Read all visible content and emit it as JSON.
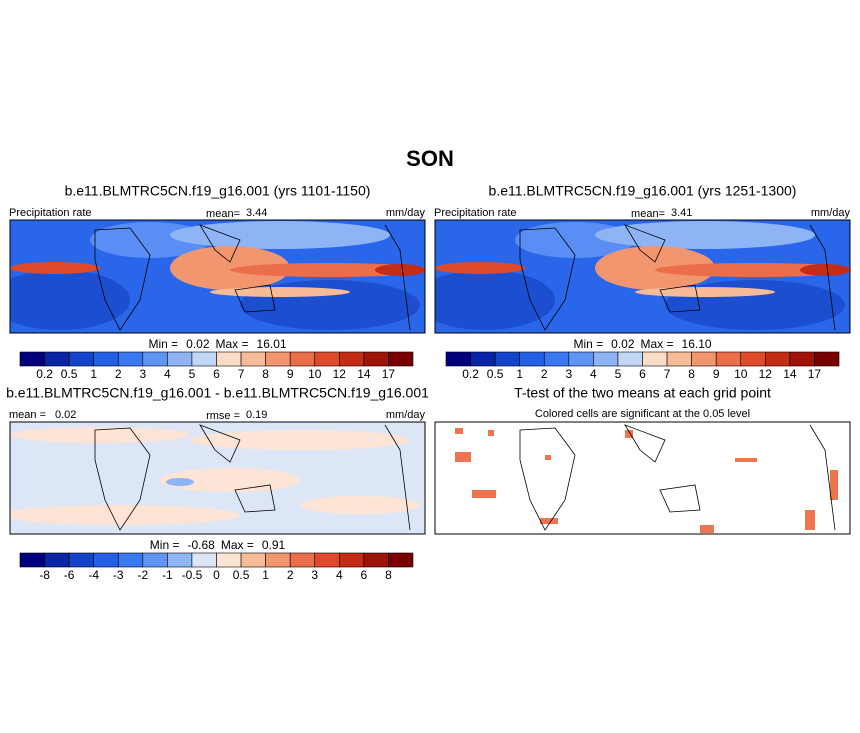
{
  "title": "SON",
  "panels": [
    {
      "title": "b.e11.BLMTRC5CN.f19_g16.001 (yrs 1101-1150)",
      "left_label": "Precipitation rate",
      "mean_label": "mean=",
      "mean": "3.44",
      "units": "mm/day",
      "min_label": "Min =",
      "min": "0.02",
      "max_label": "Max =",
      "max": "16.01"
    },
    {
      "title": "b.e11.BLMTRC5CN.f19_g16.001 (yrs 1251-1300)",
      "left_label": "Precipitation rate",
      "mean_label": "mean=",
      "mean": "3.41",
      "units": "mm/day",
      "min_label": "Min =",
      "min": "0.02",
      "max_label": "Max =",
      "max": "16.10"
    },
    {
      "title": "b.e11.BLMTRC5CN.f19_g16.001 - b.e11.BLMTRC5CN.f19_g16.001",
      "left_label": "mean =",
      "mean_label": "rmse =",
      "mean": "0.19",
      "left_value": "0.02",
      "units": "mm/day",
      "min_label": "Min =",
      "min": "-0.68",
      "max_label": "Max =",
      "max": "0.91"
    },
    {
      "title": "T-test of the two means at each grid point",
      "subtitle": "Colored cells are significant at the 0.05 level"
    }
  ],
  "colorbars": [
    {
      "labels": [
        "0.2",
        "0.5",
        "1",
        "2",
        "3",
        "4",
        "5",
        "6",
        "7",
        "8",
        "9",
        "10",
        "12",
        "14",
        "17"
      ],
      "colors": [
        "#00007f",
        "#0a24a8",
        "#1444cc",
        "#2460e6",
        "#3a78f2",
        "#6094f4",
        "#8fb4f6",
        "#c2d6f6",
        "#fbdcc6",
        "#f7bb98",
        "#f29670",
        "#ea6e4a",
        "#de4a2a",
        "#c42c16",
        "#a01408",
        "#7a0000"
      ]
    },
    {
      "labels": [
        "-8",
        "-6",
        "-4",
        "-3",
        "-2",
        "-1",
        "-0.5",
        "0",
        "0.5",
        "1",
        "2",
        "3",
        "4",
        "6",
        "8"
      ],
      "colors": [
        "#00007f",
        "#0a24a8",
        "#1444cc",
        "#2460e6",
        "#3a78f2",
        "#6094f4",
        "#8fb4f6",
        "#dce6f7",
        "#fde4d4",
        "#f7bb98",
        "#f29670",
        "#ea6e4a",
        "#de4a2a",
        "#c42c16",
        "#a01408",
        "#7a0000"
      ]
    }
  ]
}
